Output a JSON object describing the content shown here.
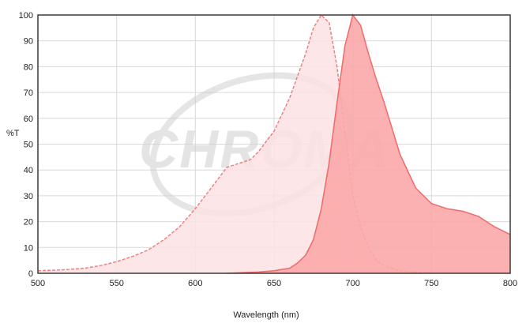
{
  "chart_data": {
    "type": "area",
    "xlabel": "Wavelength (nm)",
    "ylabel": "%T",
    "xlim": [
      500,
      800
    ],
    "ylim": [
      0,
      100
    ],
    "x_ticks": [
      500,
      550,
      600,
      650,
      700,
      750,
      800
    ],
    "y_ticks": [
      0,
      10,
      20,
      30,
      40,
      50,
      60,
      70,
      80,
      90,
      100
    ],
    "grid": true,
    "legend": "none",
    "watermark": "CHROMA",
    "series": [
      {
        "style": "dashed outline, light fill",
        "color": "#f08080",
        "fill": "#fde2e4",
        "x": [
          500,
          510,
          520,
          530,
          540,
          550,
          560,
          570,
          580,
          590,
          600,
          610,
          620,
          630,
          635,
          640,
          650,
          660,
          670,
          675,
          680,
          685,
          690,
          695,
          700,
          705,
          710,
          715,
          720,
          730,
          740,
          750
        ],
        "y": [
          1,
          1.2,
          1.5,
          2,
          3,
          4.5,
          6.5,
          9,
          13,
          18,
          25,
          33,
          41,
          43,
          44,
          47,
          55,
          68,
          85,
          95,
          100,
          97,
          80,
          55,
          30,
          18,
          10,
          5,
          3,
          1,
          0.5,
          0
        ]
      },
      {
        "style": "solid outline, darker fill",
        "color": "#f06a6a",
        "fill": "#fba8a8",
        "x": [
          620,
          640,
          650,
          660,
          665,
          670,
          675,
          680,
          685,
          690,
          695,
          700,
          705,
          710,
          715,
          720,
          730,
          740,
          750,
          760,
          770,
          780,
          790,
          800
        ],
        "y": [
          0,
          0.5,
          1,
          2,
          4,
          7,
          13,
          25,
          43,
          66,
          88,
          100,
          96,
          85,
          75,
          66,
          46,
          33,
          27,
          25,
          24,
          22,
          18,
          15
        ]
      }
    ]
  }
}
